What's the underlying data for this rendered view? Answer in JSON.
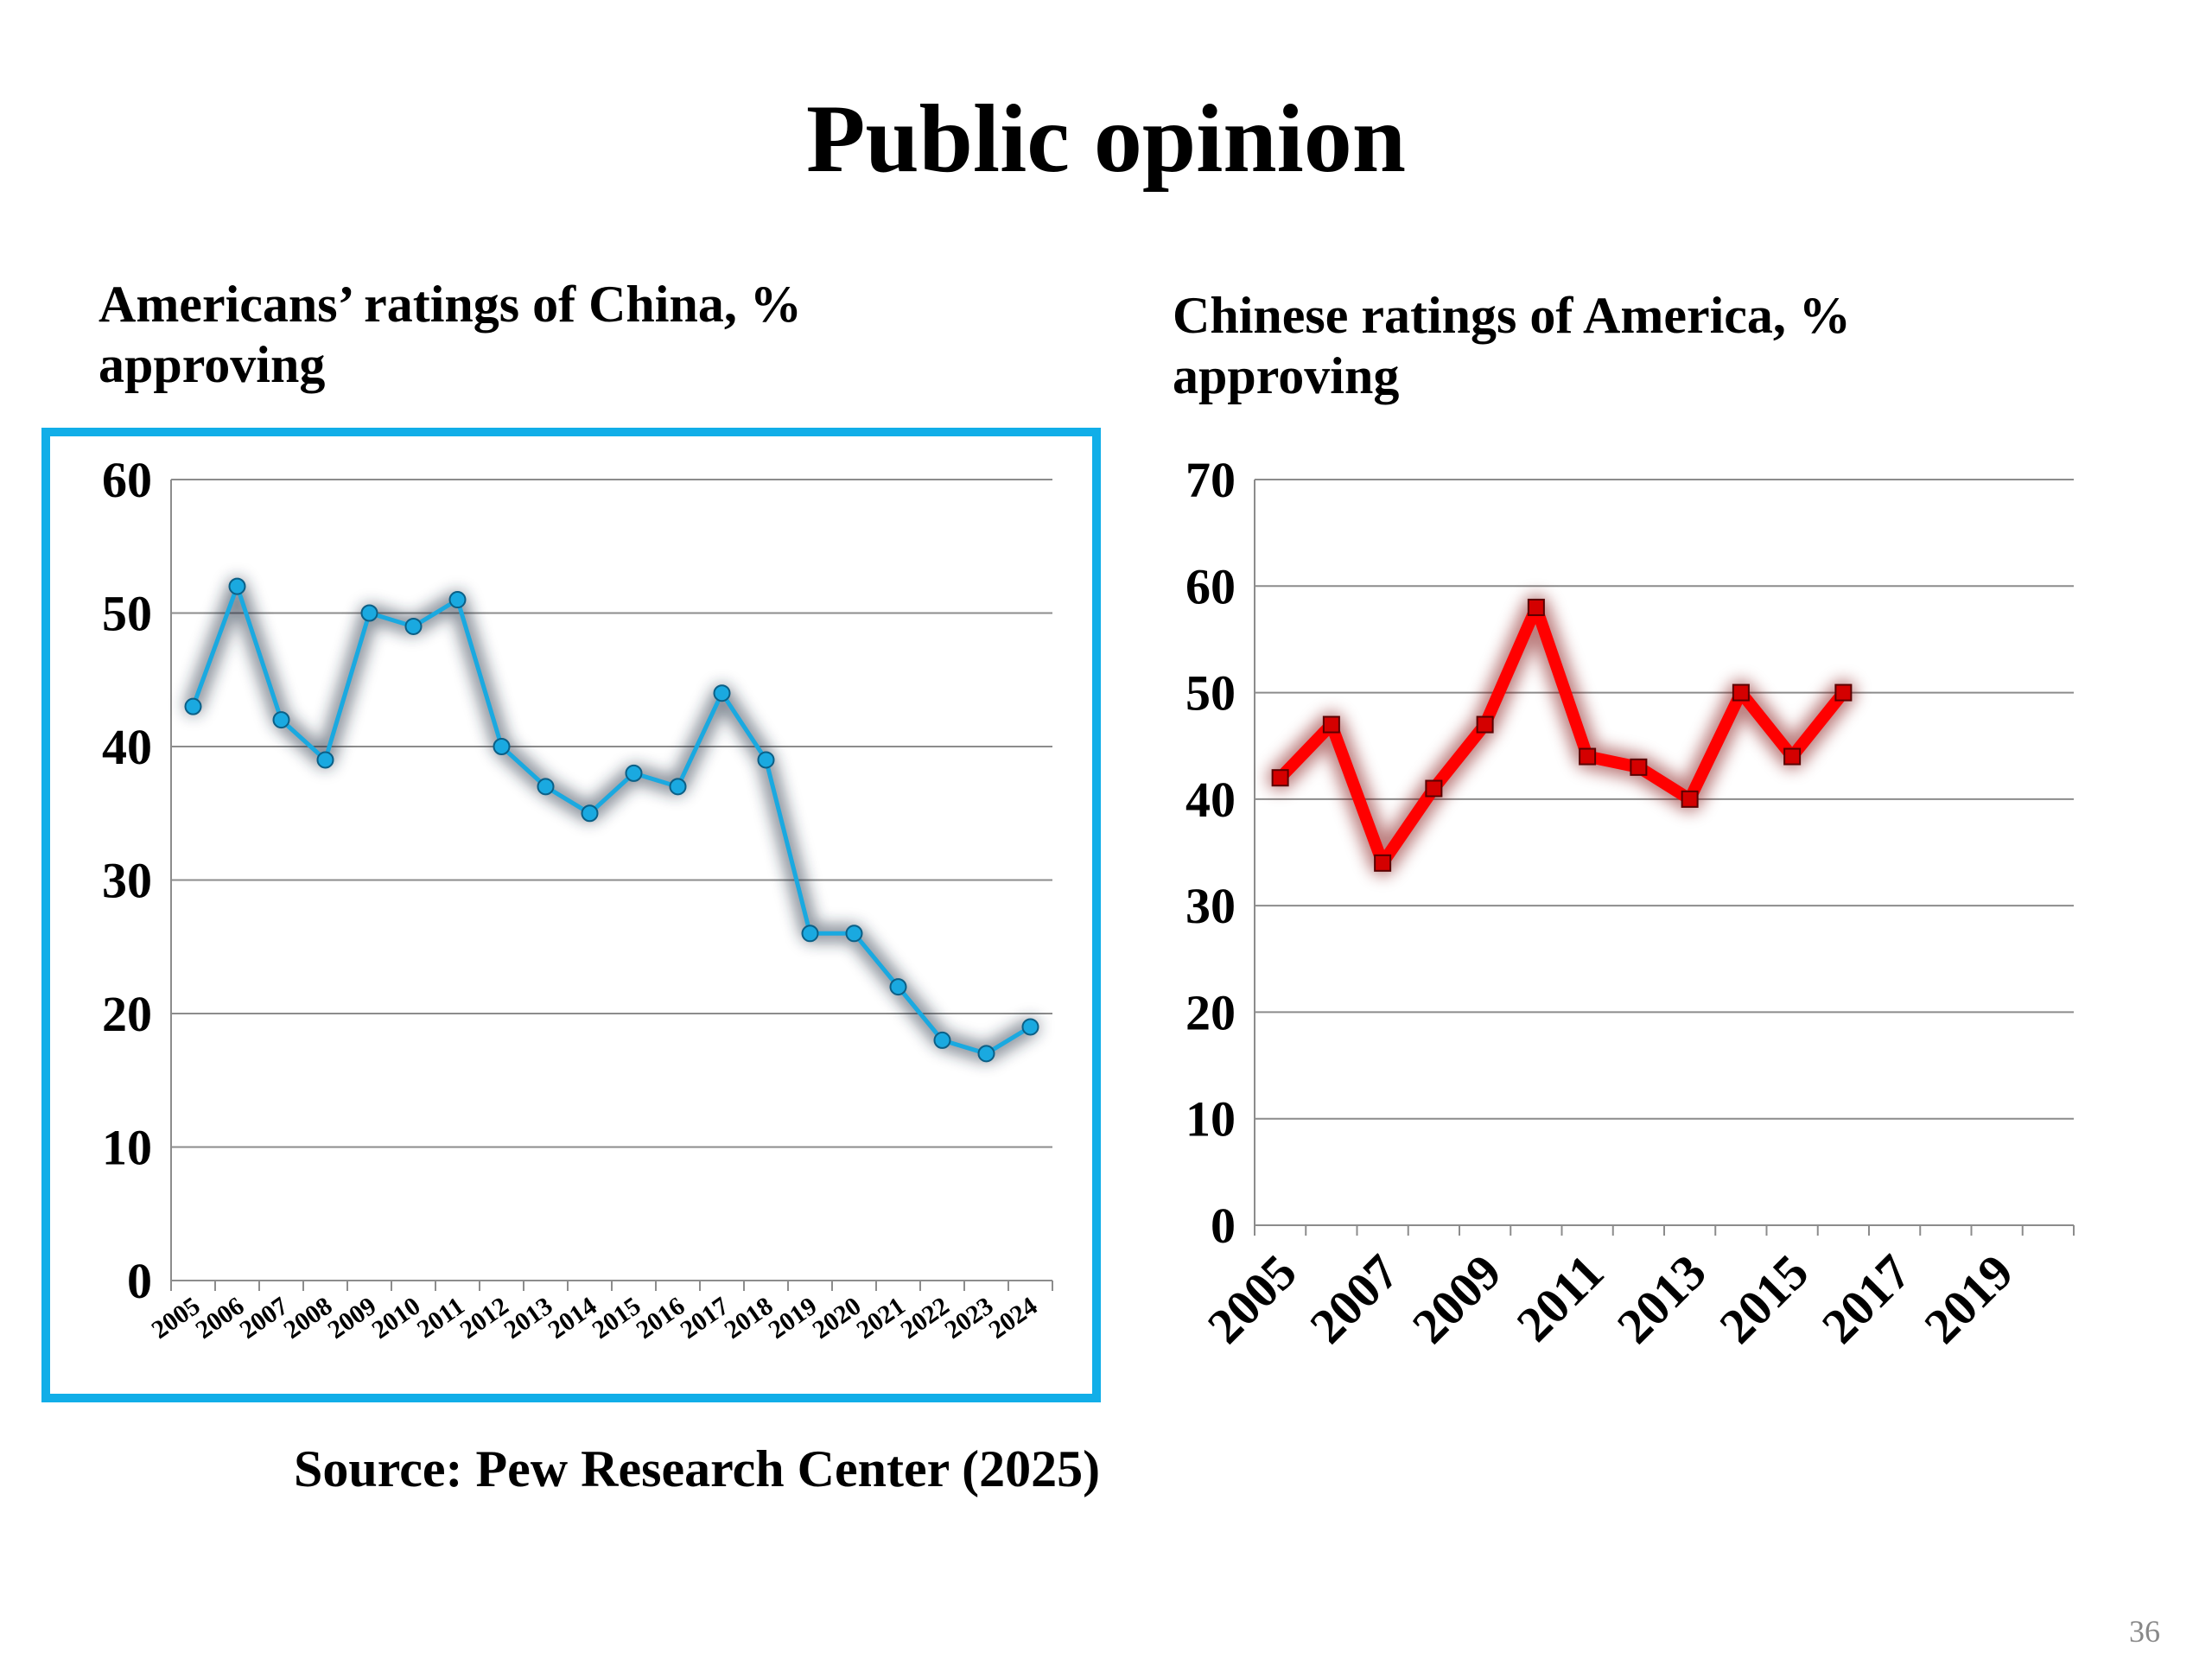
{
  "slide": {
    "title": "Public opinion",
    "source": "Source: Pew Research Center (2025)",
    "page_number": "36"
  },
  "colors": {
    "left_line": "#1aa9e0",
    "left_frame": "#11aee8",
    "right_line": "#ff0000",
    "grid": "#8c8c8c"
  },
  "chart_data": [
    {
      "type": "line",
      "title": "Americans’ ratings of China, % approving",
      "xlabel": "",
      "ylabel": "",
      "categories": [
        "2005",
        "2006",
        "2007",
        "2008",
        "2009",
        "2010",
        "2011",
        "2012",
        "2013",
        "2014",
        "2015",
        "2016",
        "2017",
        "2018",
        "2019",
        "2020",
        "2021",
        "2022",
        "2023",
        "2024"
      ],
      "ylim": [
        0,
        60
      ],
      "yticks": [
        0,
        10,
        20,
        30,
        40,
        50,
        60
      ],
      "grid": true,
      "series": [
        {
          "values": [
            43,
            52,
            42,
            39,
            50,
            49,
            51,
            40,
            37,
            35,
            38,
            37,
            44,
            39,
            26,
            26,
            22,
            18,
            17,
            19
          ]
        }
      ]
    },
    {
      "type": "line",
      "title": "Chinese ratings of America, % approving",
      "xlabel": "",
      "ylabel": "",
      "categories": [
        "2005",
        "2006",
        "2007",
        "2008",
        "2009",
        "2010",
        "2011",
        "2012",
        "2013",
        "2014",
        "2015",
        "2016",
        "2017",
        "2018",
        "2019",
        "2020"
      ],
      "tick_labels": [
        "2005",
        "2007",
        "2009",
        "2011",
        "2013",
        "2015",
        "2017",
        "2019"
      ],
      "ylim": [
        0,
        70
      ],
      "yticks": [
        0,
        10,
        20,
        30,
        40,
        50,
        60,
        70
      ],
      "grid": true,
      "series": [
        {
          "values": [
            42,
            47,
            34,
            41,
            47,
            58,
            44,
            43,
            40,
            50,
            44,
            50,
            null,
            null,
            null,
            null
          ]
        }
      ]
    }
  ]
}
